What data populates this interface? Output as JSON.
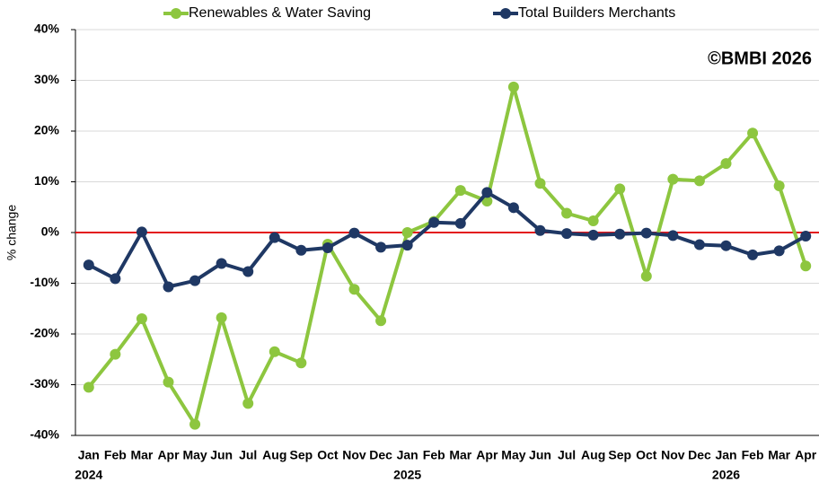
{
  "chart_data": {
    "type": "line",
    "categories": [
      "Jan",
      "Feb",
      "Mar",
      "Apr",
      "May",
      "Jun",
      "Jul",
      "Aug",
      "Sep",
      "Oct",
      "Nov",
      "Dec",
      "Jan",
      "Feb",
      "Mar",
      "Apr",
      "May",
      "Jun",
      "Jul",
      "Aug",
      "Sep",
      "Oct",
      "Nov",
      "Dec",
      "Jan",
      "Feb",
      "Mar",
      "Apr"
    ],
    "year_labels": [
      "2024",
      "2025",
      "2026"
    ],
    "y_label": "% change",
    "watermark": "©BMBI 2026",
    "ylim": [
      -40,
      40
    ],
    "yticks": [
      {
        "value": -40,
        "label": "-40%"
      },
      {
        "value": -30,
        "label": "-30%"
      },
      {
        "value": -20,
        "label": "-20%"
      },
      {
        "value": -10,
        "label": "-10%"
      },
      {
        "value": 0,
        "label": "0%"
      },
      {
        "value": 10,
        "label": "10%"
      },
      {
        "value": 20,
        "label": "20%"
      },
      {
        "value": 30,
        "label": "30%"
      },
      {
        "value": 40,
        "label": "40%"
      }
    ],
    "grid": true,
    "zero_line_color": "#e3161b",
    "series": [
      {
        "name": "Renewables & Water Saving",
        "color": "#8dc63f",
        "values": [
          -30.5,
          -24,
          -17,
          -29.5,
          -37.8,
          -16.8,
          -33.7,
          -23.5,
          -25.7,
          -2.3,
          -11.2,
          -17.4,
          0,
          2.2,
          8.3,
          6.2,
          28.7,
          9.7,
          3.8,
          2.3,
          8.6,
          -8.6,
          10.5,
          10.2,
          13.6,
          19.6,
          9.2,
          -6.6
        ]
      },
      {
        "name": "Total Builders Merchants",
        "color": "#1f3864",
        "values": [
          -6.4,
          -9.1,
          0.1,
          -10.7,
          -9.5,
          -6.1,
          -7.7,
          -1.0,
          -3.5,
          -3.0,
          -0.1,
          -2.9,
          -2.5,
          2.0,
          1.8,
          7.9,
          4.9,
          0.4,
          -0.2,
          -0.5,
          -0.3,
          -0.1,
          -0.6,
          -2.4,
          -2.6,
          -4.4,
          -3.6,
          -0.7
        ]
      }
    ]
  }
}
